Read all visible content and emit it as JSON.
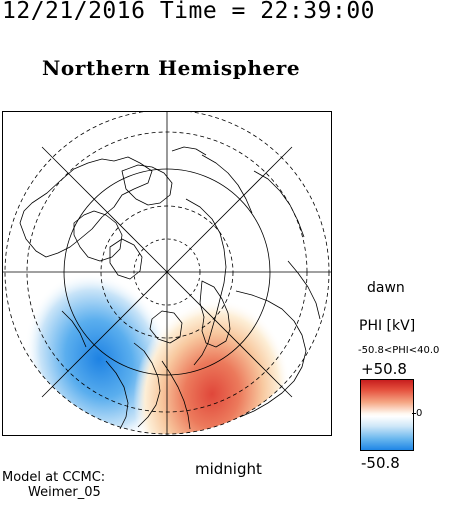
{
  "header": {
    "datetime_label": "12/21/2016 Time = 22:39:00"
  },
  "title": "Northern Hemisphere",
  "map": {
    "orientation_labels": {
      "right": "dawn",
      "bottom": "midnight"
    },
    "projection": "polar",
    "pole": "north",
    "field": "PHI"
  },
  "colorbar": {
    "label": "PHI [kV]",
    "range_text": "-50.8<PHI<40.0",
    "max_label": "+50.8",
    "mid_label": "0",
    "min_label": "-50.8",
    "colors": {
      "positive": "#d9302a",
      "neutral": "#ffffff",
      "negative": "#1f86e6"
    }
  },
  "footer": {
    "model_label": "Model at CCMC:",
    "model_name": "Weimer_05"
  }
}
